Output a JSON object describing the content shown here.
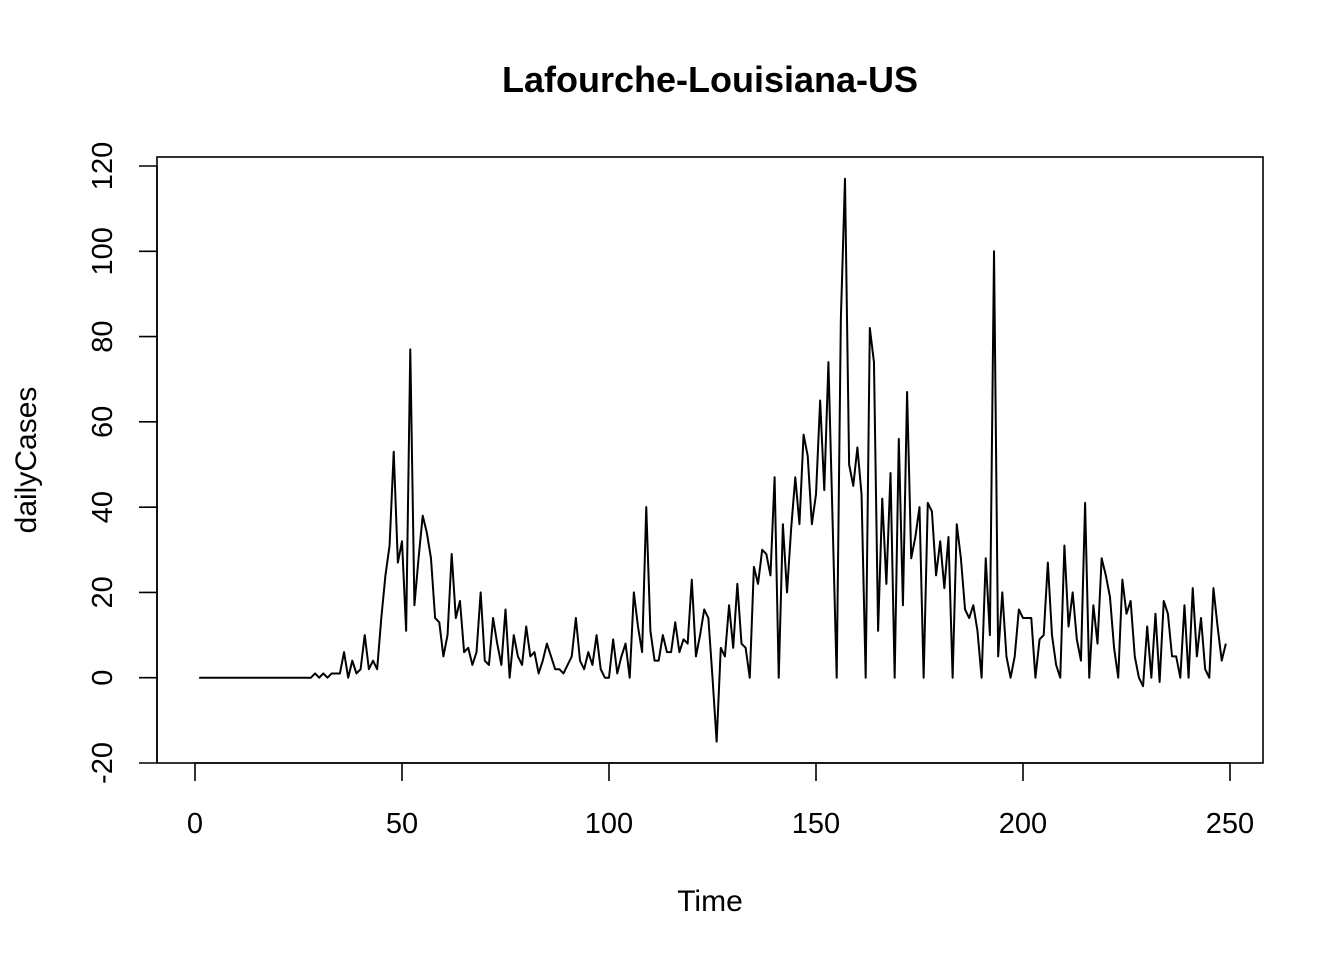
{
  "chart_data": {
    "type": "line",
    "title": "Lafourche-Louisiana-US",
    "xlabel": "Time",
    "ylabel": "dailyCases",
    "xlim": [
      0,
      250
    ],
    "ylim": [
      -20,
      120
    ],
    "xticks": [
      0,
      50,
      100,
      150,
      200,
      250
    ],
    "yticks": [
      -20,
      0,
      20,
      40,
      60,
      80,
      100,
      120
    ],
    "xtick_labels": [
      "0",
      "50",
      "100",
      "150",
      "200",
      "250"
    ],
    "ytick_labels": [
      "-20",
      "0",
      "20",
      "40",
      "60",
      "80",
      "100",
      "120"
    ],
    "grid": false,
    "line_color": "#000000",
    "series": [
      {
        "x_start": 1,
        "values": [
          0,
          0,
          0,
          0,
          0,
          0,
          0,
          0,
          0,
          0,
          0,
          0,
          0,
          0,
          0,
          0,
          0,
          0,
          0,
          0,
          0,
          0,
          0,
          0,
          0,
          0,
          0,
          0,
          1,
          0,
          1,
          0,
          1,
          1,
          1,
          6,
          0,
          4,
          1,
          2,
          10,
          2,
          4,
          2,
          14,
          24,
          31,
          53,
          27,
          32,
          11,
          77,
          17,
          28,
          38,
          34,
          28,
          14,
          13,
          5,
          10,
          29,
          14,
          18,
          6,
          7,
          3,
          6,
          20,
          4,
          3,
          14,
          8,
          3,
          16,
          0,
          10,
          5,
          3,
          12,
          5,
          6,
          1,
          4,
          8,
          5,
          2,
          2,
          1,
          3,
          5,
          14,
          4,
          2,
          6,
          3,
          10,
          2,
          0,
          0,
          9,
          1,
          5,
          8,
          0,
          20,
          12,
          6,
          40,
          11,
          4,
          4,
          10,
          6,
          6,
          13,
          6,
          9,
          8,
          23,
          5,
          10,
          16,
          14,
          0,
          -15,
          7,
          5,
          17,
          7,
          22,
          8,
          7,
          0,
          26,
          22,
          30,
          29,
          24,
          47,
          0,
          36,
          20,
          35,
          47,
          36,
          57,
          52,
          36,
          43,
          65,
          44,
          74,
          37,
          0,
          84,
          117,
          50,
          45,
          54,
          43,
          0,
          82,
          74,
          11,
          42,
          22,
          48,
          0,
          56,
          17,
          67,
          28,
          33,
          40,
          0,
          41,
          39,
          24,
          32,
          21,
          33,
          0,
          36,
          28,
          16,
          14,
          17,
          11,
          0,
          28,
          10,
          100,
          5,
          20,
          5,
          0,
          5,
          16,
          14,
          14,
          14,
          0,
          9,
          10,
          27,
          10,
          3,
          0,
          31,
          12,
          20,
          9,
          4,
          41,
          0,
          17,
          8,
          28,
          24,
          19,
          7,
          0,
          23,
          15,
          18,
          5,
          0,
          -2,
          12,
          0,
          15,
          -1,
          18,
          15,
          5,
          5,
          0,
          17,
          0,
          21,
          5,
          14,
          2,
          0,
          21,
          12,
          4,
          8
        ]
      }
    ]
  }
}
